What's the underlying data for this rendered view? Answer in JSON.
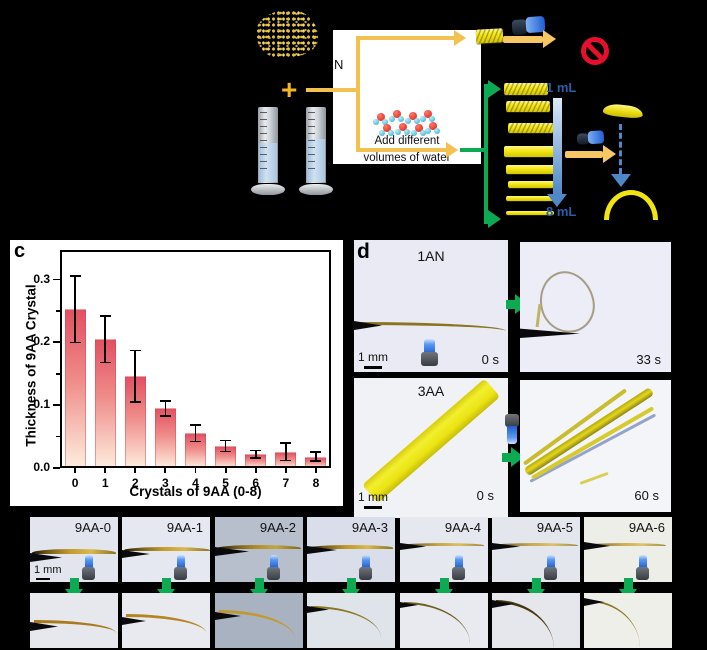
{
  "colors": {
    "background": "#000000",
    "crystal_yellow": "#f2e611",
    "flow_arrow": "#f2c14e",
    "green_arrow": "#0caa52",
    "volume_blue": "#2b5ca8",
    "prohibition_red": "#e60f2e",
    "bar_top": "#e25062",
    "bar_bottom": "#fdeede"
  },
  "panel_a": {
    "plus": "+",
    "nitrogen_label": "N"
  },
  "panel_b": {
    "add_line1": "Add different",
    "add_line2": "volumes of water",
    "volume_top": "1 mL",
    "volume_bottom": "8 mL"
  },
  "chart_data": {
    "type": "bar",
    "panel_label": "c",
    "categories": [
      "0",
      "1",
      "2",
      "3",
      "4",
      "5",
      "6",
      "7",
      "8"
    ],
    "values": [
      0.253,
      0.205,
      0.146,
      0.095,
      0.055,
      0.035,
      0.022,
      0.026,
      0.018
    ],
    "errors": [
      0.053,
      0.037,
      0.041,
      0.012,
      0.013,
      0.009,
      0.006,
      0.014,
      0.007
    ],
    "title": "",
    "xlabel": "Crystals of 9AA (0-8)",
    "ylabel": "Thickness of 9AA Crystal",
    "ytick_labels": [
      "0.0",
      "0.1",
      "0.2",
      "0.3"
    ],
    "yticks": [
      0.0,
      0.1,
      0.2,
      0.3
    ],
    "minor_yticks": [
      0.05,
      0.15,
      0.25
    ],
    "ylim": [
      0,
      0.347
    ],
    "grid": false,
    "legend": "none"
  },
  "panel_d": {
    "panel_label": "d",
    "rows": [
      {
        "sample": "1AN",
        "time_before": "0 s",
        "time_after": "33 s",
        "scale": "1 mm"
      },
      {
        "sample": "3AA",
        "time_before": "0 s",
        "time_after": "60 s",
        "scale": "1 mm"
      }
    ]
  },
  "panel_e": {
    "scale": "1 mm",
    "tiles": [
      {
        "label": "9AA-0"
      },
      {
        "label": "9AA-1"
      },
      {
        "label": "9AA-2"
      },
      {
        "label": "9AA-3"
      },
      {
        "label": "9AA-4"
      },
      {
        "label": "9AA-5"
      },
      {
        "label": "9AA-6"
      }
    ]
  }
}
